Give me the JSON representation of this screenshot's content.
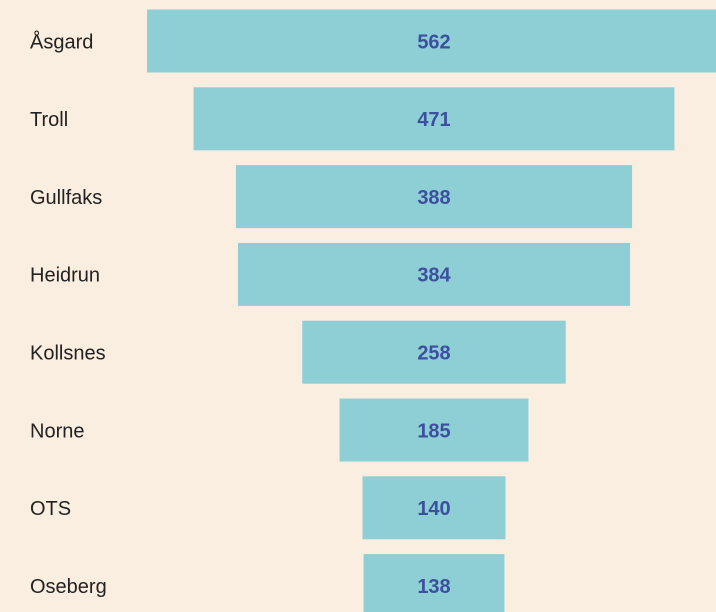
{
  "chart_data": {
    "type": "funnel",
    "categories": [
      "Åsgard",
      "Troll",
      "Gullfaks",
      "Heidrun",
      "Kollsnes",
      "Norne",
      "OTS",
      "Oseberg"
    ],
    "values": [
      562,
      471,
      388,
      384,
      258,
      185,
      140,
      138
    ],
    "color": "#8ecfd6"
  }
}
